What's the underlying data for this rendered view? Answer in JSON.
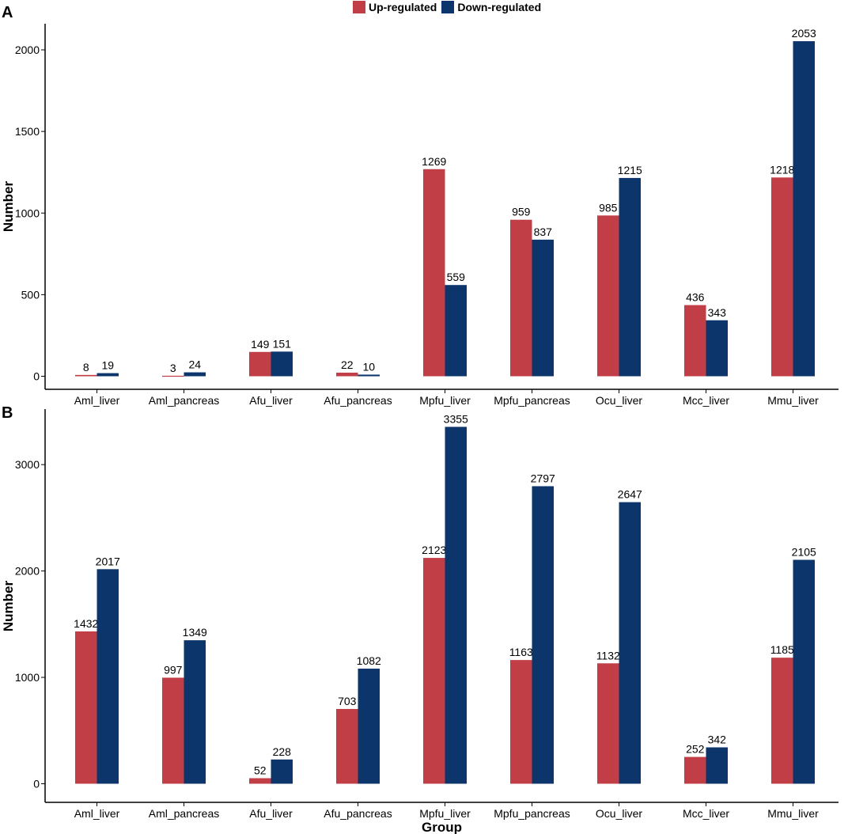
{
  "colors": {
    "up": "#C13E47",
    "down": "#0B356B"
  },
  "legend": {
    "up": {
      "label": "Up-regulated",
      "color": "#C13E47"
    },
    "down": {
      "label": "Down-regulated",
      "color": "#0B356B"
    }
  },
  "chart_data": [
    {
      "panel": "A",
      "type": "bar",
      "ylabel": "Number",
      "xlabel": "",
      "categories": [
        "Aml_liver",
        "Aml_pancreas",
        "Afu_liver",
        "Afu_pancreas",
        "Mpfu_liver",
        "Mpfu_pancreas",
        "Ocu_liver",
        "Mcc_liver",
        "Mmu_liver"
      ],
      "series": [
        {
          "name": "Up-regulated",
          "values": [
            8,
            3,
            149,
            22,
            1269,
            959,
            985,
            436,
            1218
          ]
        },
        {
          "name": "Down-regulated",
          "values": [
            19,
            24,
            151,
            10,
            559,
            837,
            1215,
            343,
            2053
          ]
        }
      ],
      "yticks": [
        0,
        500,
        1000,
        1500,
        2000
      ],
      "ylim": [
        -80,
        2160
      ],
      "grid": false,
      "legend_position": "top"
    },
    {
      "panel": "B",
      "type": "bar",
      "ylabel": "Number",
      "xlabel": "Group",
      "categories": [
        "Aml_liver",
        "Aml_pancreas",
        "Afu_liver",
        "Afu_pancreas",
        "Mpfu_liver",
        "Mpfu_pancreas",
        "Ocu_liver",
        "Mcc_liver",
        "Mmu_liver"
      ],
      "series": [
        {
          "name": "Up-regulated",
          "values": [
            1432,
            997,
            52,
            703,
            2123,
            1163,
            1132,
            252,
            1185
          ]
        },
        {
          "name": "Down-regulated",
          "values": [
            2017,
            1349,
            228,
            1082,
            3355,
            2797,
            2647,
            342,
            2105
          ]
        }
      ],
      "yticks": [
        0,
        1000,
        2000,
        3000
      ],
      "ylim": [
        -175,
        3522
      ],
      "grid": false,
      "legend_position": "top"
    }
  ]
}
